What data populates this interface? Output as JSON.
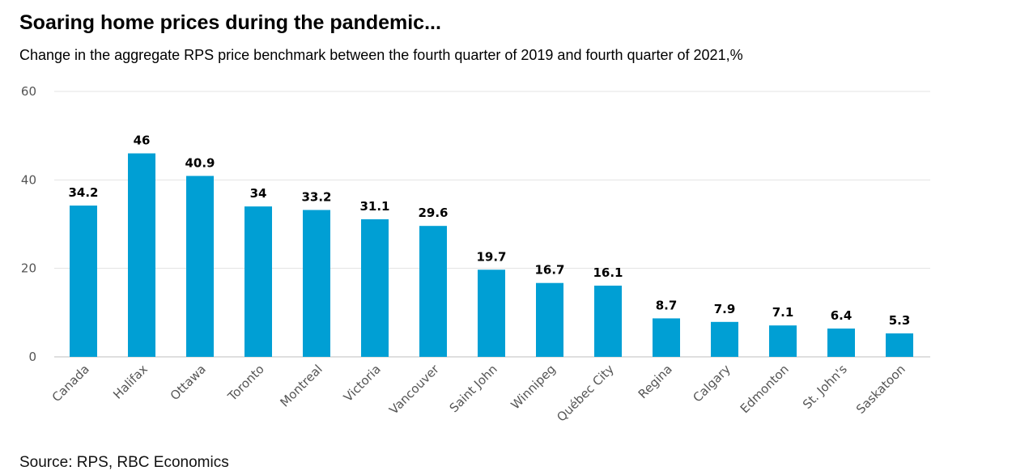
{
  "header": {
    "title": "Soaring home prices during the pandemic...",
    "subtitle": "Change in the aggregate RPS price benchmark between the fourth quarter of 2019 and fourth quarter of 2021,%"
  },
  "footer": {
    "source": "Source: RPS, RBC Economics"
  },
  "chart_data": {
    "type": "bar",
    "title": "Soaring home prices during the pandemic...",
    "subtitle": "Change in the aggregate RPS price benchmark between the fourth quarter of 2019 and fourth quarter of 2021,%",
    "xlabel": "",
    "ylabel": "",
    "ylim": [
      0,
      60
    ],
    "yticks": [
      0,
      20,
      40,
      60
    ],
    "grid": true,
    "legend": "none",
    "bar_color": "#009fd4",
    "categories": [
      "Canada",
      "Halifax",
      "Ottawa",
      "Toronto",
      "Montreal",
      "Victoria",
      "Vancouver",
      "Saint John",
      "Winnipeg",
      "Québec City",
      "Regina",
      "Calgary",
      "Edmonton",
      "St. John's",
      "Saskatoon"
    ],
    "values": [
      34.2,
      46,
      40.9,
      34,
      33.2,
      31.1,
      29.6,
      19.7,
      16.7,
      16.1,
      8.7,
      7.9,
      7.1,
      6.4,
      5.3
    ],
    "data_labels": [
      "34.2",
      "46",
      "40.9",
      "34",
      "33.2",
      "31.1",
      "29.6",
      "19.7",
      "16.7",
      "16.1",
      "8.7",
      "7.9",
      "7.1",
      "6.4",
      "5.3"
    ]
  }
}
